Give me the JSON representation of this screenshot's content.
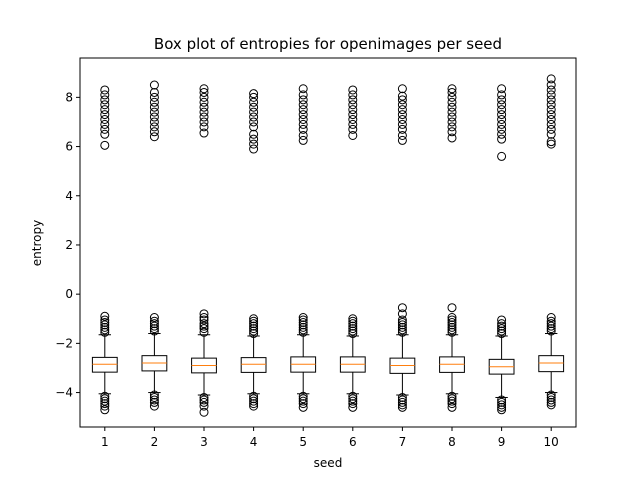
{
  "chart_data": {
    "type": "box",
    "title": "Box plot of entropies for openimages per seed",
    "xlabel": "seed",
    "ylabel": "entropy",
    "ylim": [
      -5.4,
      9.6
    ],
    "yticks": [
      -4,
      -2,
      0,
      2,
      4,
      6,
      8
    ],
    "categories": [
      "1",
      "2",
      "3",
      "4",
      "5",
      "6",
      "7",
      "8",
      "9",
      "10"
    ],
    "colors": {
      "box": "#000000",
      "median": "#ff7f0e",
      "background": "#ffffff"
    },
    "boxes": [
      {
        "seed": "1",
        "q1": -3.17,
        "median": -2.85,
        "q3": -2.57,
        "whisker_low": -4.05,
        "whisker_high": -1.65,
        "fliers_low": [
          -4.15,
          -4.25,
          -4.35,
          -4.45,
          -4.55,
          -4.7
        ],
        "fliers_high": [
          -1.55,
          -1.45,
          -1.35,
          -1.25,
          -1.15,
          -1.05,
          -0.9,
          6.05,
          6.5,
          6.7,
          6.9,
          7.1,
          7.3,
          7.5,
          7.7,
          7.9,
          8.1,
          8.3
        ]
      },
      {
        "seed": "2",
        "q1": -3.12,
        "median": -2.8,
        "q3": -2.5,
        "whisker_low": -4.0,
        "whisker_high": -1.6,
        "fliers_low": [
          -4.1,
          -4.2,
          -4.3,
          -4.4,
          -4.55
        ],
        "fliers_high": [
          -1.5,
          -1.4,
          -1.3,
          -1.2,
          -1.1,
          -0.95,
          6.4,
          6.6,
          6.8,
          7.0,
          7.2,
          7.4,
          7.6,
          7.8,
          8.0,
          8.2,
          8.5
        ]
      },
      {
        "seed": "3",
        "q1": -3.2,
        "median": -2.9,
        "q3": -2.6,
        "whisker_low": -4.1,
        "whisker_high": -1.65,
        "fliers_low": [
          -4.2,
          -4.3,
          -4.4,
          -4.55,
          -4.8
        ],
        "fliers_high": [
          -1.55,
          -1.4,
          -1.3,
          -1.2,
          -1.05,
          -0.95,
          -0.8,
          6.55,
          6.8,
          7.0,
          7.2,
          7.4,
          7.6,
          7.8,
          8.0,
          8.2,
          8.35
        ]
      },
      {
        "seed": "4",
        "q1": -3.18,
        "median": -2.85,
        "q3": -2.58,
        "whisker_low": -4.05,
        "whisker_high": -1.7,
        "fliers_low": [
          -4.15,
          -4.25,
          -4.35,
          -4.45,
          -4.55
        ],
        "fliers_high": [
          -1.6,
          -1.5,
          -1.4,
          -1.3,
          -1.2,
          -1.1,
          -1.0,
          5.9,
          6.1,
          6.3,
          6.5,
          6.8,
          7.0,
          7.2,
          7.4,
          7.6,
          7.8,
          8.0,
          8.15
        ]
      },
      {
        "seed": "5",
        "q1": -3.17,
        "median": -2.85,
        "q3": -2.55,
        "whisker_low": -4.05,
        "whisker_high": -1.65,
        "fliers_low": [
          -4.15,
          -4.25,
          -4.35,
          -4.45,
          -4.6
        ],
        "fliers_high": [
          -1.55,
          -1.45,
          -1.35,
          -1.25,
          -1.15,
          -1.05,
          -0.95,
          6.25,
          6.45,
          6.7,
          6.9,
          7.1,
          7.3,
          7.5,
          7.7,
          7.9,
          8.1,
          8.35
        ]
      },
      {
        "seed": "6",
        "q1": -3.17,
        "median": -2.85,
        "q3": -2.55,
        "whisker_low": -4.05,
        "whisker_high": -1.7,
        "fliers_low": [
          -4.15,
          -4.25,
          -4.35,
          -4.45,
          -4.6
        ],
        "fliers_high": [
          -1.6,
          -1.5,
          -1.4,
          -1.3,
          -1.2,
          -1.1,
          -1.0,
          6.45,
          6.7,
          6.9,
          7.1,
          7.3,
          7.5,
          7.7,
          7.9,
          8.1,
          8.3
        ]
      },
      {
        "seed": "7",
        "q1": -3.22,
        "median": -2.9,
        "q3": -2.6,
        "whisker_low": -4.1,
        "whisker_high": -1.65,
        "fliers_low": [
          -4.2,
          -4.3,
          -4.4,
          -4.5,
          -4.6
        ],
        "fliers_high": [
          -1.55,
          -1.45,
          -1.35,
          -1.25,
          -1.15,
          -1.05,
          -0.8,
          -0.55,
          6.25,
          6.45,
          6.7,
          6.9,
          7.1,
          7.3,
          7.5,
          7.7,
          7.9,
          8.05,
          8.35
        ]
      },
      {
        "seed": "8",
        "q1": -3.18,
        "median": -2.85,
        "q3": -2.55,
        "whisker_low": -4.05,
        "whisker_high": -1.65,
        "fliers_low": [
          -4.15,
          -4.25,
          -4.35,
          -4.45,
          -4.6
        ],
        "fliers_high": [
          -1.55,
          -1.45,
          -1.35,
          -1.25,
          -1.15,
          -1.05,
          -0.95,
          -0.55,
          6.35,
          6.6,
          6.8,
          7.0,
          7.2,
          7.4,
          7.6,
          7.8,
          8.0,
          8.2,
          8.35
        ]
      },
      {
        "seed": "9",
        "q1": -3.25,
        "median": -2.95,
        "q3": -2.65,
        "whisker_low": -4.2,
        "whisker_high": -1.7,
        "fliers_low": [
          -4.3,
          -4.4,
          -4.5,
          -4.6,
          -4.7
        ],
        "fliers_high": [
          -1.6,
          -1.5,
          -1.4,
          -1.3,
          -1.2,
          -1.05,
          5.6,
          6.3,
          6.5,
          6.7,
          6.9,
          7.1,
          7.3,
          7.5,
          7.7,
          7.9,
          8.1,
          8.35
        ]
      },
      {
        "seed": "10",
        "q1": -3.15,
        "median": -2.8,
        "q3": -2.5,
        "whisker_low": -4.0,
        "whisker_high": -1.6,
        "fliers_low": [
          -4.1,
          -4.2,
          -4.3,
          -4.4,
          -4.5
        ],
        "fliers_high": [
          -1.5,
          -1.4,
          -1.3,
          -1.2,
          -1.1,
          -0.95,
          6.1,
          6.2,
          6.5,
          6.7,
          6.9,
          7.1,
          7.3,
          7.5,
          7.7,
          7.9,
          8.1,
          8.3,
          8.5,
          8.75
        ]
      }
    ]
  }
}
